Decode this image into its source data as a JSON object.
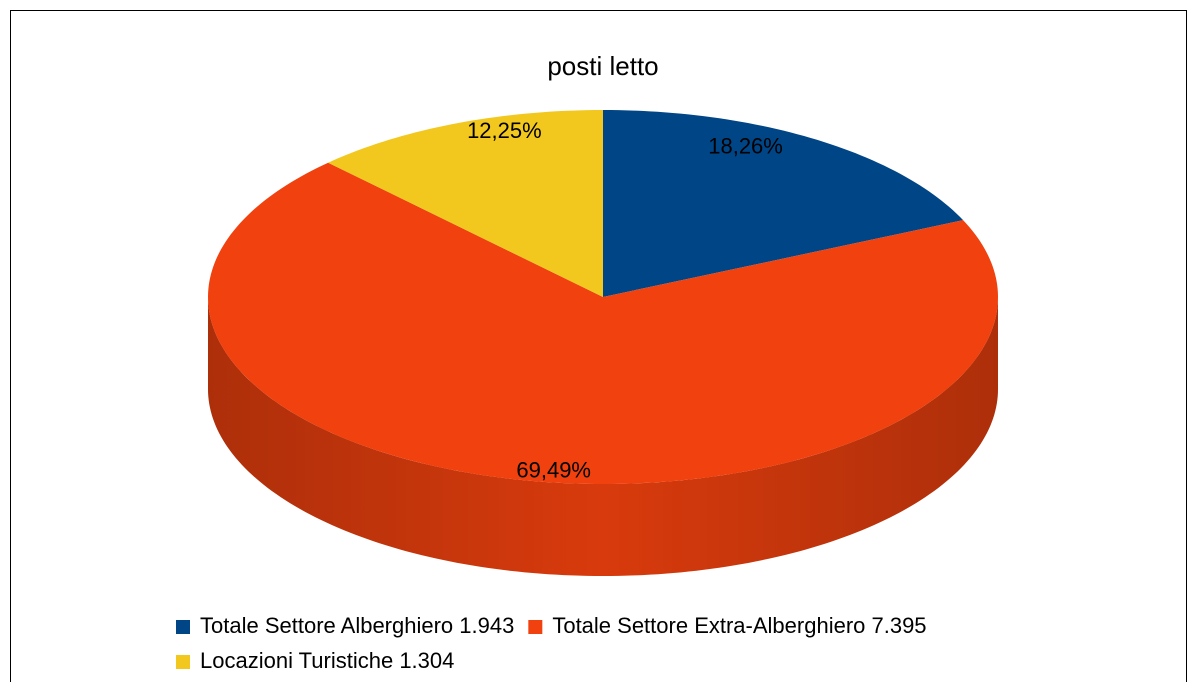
{
  "chart_data": {
    "type": "pie",
    "title": "posti letto",
    "categories": [
      "Totale Settore Alberghiero 1.943",
      "Totale Settore Extra-Alberghiero 7.395",
      "Locazioni Turistiche 1.304"
    ],
    "values": [
      18.26,
      69.49,
      12.25
    ],
    "value_labels": [
      "18,26%",
      "69,49%",
      "12,25%"
    ],
    "colors": [
      "#004586",
      "#f0410e",
      "#f2c81e"
    ],
    "legend": "bottom"
  }
}
